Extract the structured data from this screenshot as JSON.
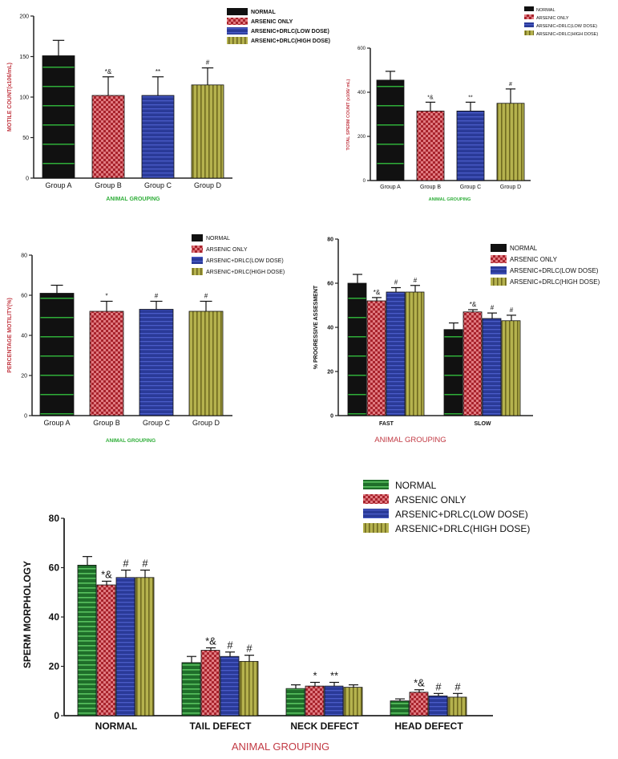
{
  "figure": {
    "colors": {
      "normal": "#111111",
      "normal_green": "#1f6e2a",
      "arsenic": "#a8232c",
      "low": "#2a3a98",
      "high": "#b5b24e",
      "green_label": "#2fae39",
      "red_label": "#c23a44"
    }
  },
  "chart_data": [
    {
      "id": "motile",
      "type": "bar",
      "categories": [
        "Group A",
        "Group B",
        "Group C",
        "Group D"
      ],
      "values": [
        151,
        102,
        102,
        115
      ],
      "errors": [
        19,
        23,
        23,
        21
      ],
      "annotations": [
        "",
        "*&",
        "**",
        "#"
      ],
      "xlabel": "ANIMAL GROUPING",
      "ylabel": "MOTILE COUNT(x106/mL)",
      "ylim": [
        0,
        200
      ],
      "yticks": [
        0,
        50,
        100,
        150,
        200
      ],
      "legend": [
        "NORMAL",
        "ARSENIC ONLY",
        "ARSENIC+DRLC(LOW DOSE)",
        "ARSENIC+DRLC(HIGH DOSE)"
      ]
    },
    {
      "id": "total",
      "type": "bar",
      "categories": [
        "Group A",
        "Group B",
        "Group C",
        "Group D"
      ],
      "values": [
        455,
        315,
        315,
        350
      ],
      "errors": [
        40,
        40,
        40,
        65
      ],
      "annotations": [
        "",
        "*&",
        "**",
        "#"
      ],
      "xlabel": "ANIMAL GROUPING",
      "ylabel": "TOTAL SPERM COUNT (x106/ mL)",
      "ylim": [
        0,
        600
      ],
      "yticks": [
        0,
        200,
        400,
        600
      ],
      "legend": [
        "NORMAL",
        "ARSENIC ONLY",
        "ARSENIC+DRLC(LOW DOSE)",
        "ARSENIC+DRLC(HIGH DOSE)"
      ]
    },
    {
      "id": "percentage",
      "type": "bar",
      "categories": [
        "Group A",
        "Group B",
        "Group C",
        "Group D"
      ],
      "values": [
        61,
        52,
        53,
        52
      ],
      "errors": [
        4,
        5,
        4,
        5
      ],
      "annotations": [
        "",
        "*",
        "#",
        "#"
      ],
      "xlabel": "ANIMAL GROUPING",
      "ylabel": "PERCENTAGE MOTILITY(%)",
      "ylim": [
        0,
        80
      ],
      "yticks": [
        0,
        20,
        40,
        60,
        80
      ],
      "legend": [
        "NORMAL",
        "ARSENIC ONLY",
        "ARSENIC+DRLC(LOW DOSE)",
        "ARSENIC+DRLC(HIGH DOSE)"
      ]
    },
    {
      "id": "progressive",
      "type": "bar",
      "categories": [
        "FAST",
        "SLOW"
      ],
      "series": [
        {
          "name": "NORMAL",
          "values": [
            60,
            39
          ],
          "errors": [
            4,
            3
          ],
          "annotations": [
            "",
            ""
          ]
        },
        {
          "name": "ARSENIC ONLY",
          "values": [
            52,
            47
          ],
          "errors": [
            1.5,
            1
          ],
          "annotations": [
            "*&",
            "*&"
          ]
        },
        {
          "name": "ARSENIC+DRLC(LOW DOSE)",
          "values": [
            56,
            44
          ],
          "errors": [
            2,
            2.5
          ],
          "annotations": [
            "#",
            "#"
          ]
        },
        {
          "name": "ARSENIC+DRLC(HIGH DOSE)",
          "values": [
            56,
            43
          ],
          "errors": [
            3,
            2.5
          ],
          "annotations": [
            "#",
            "#"
          ]
        }
      ],
      "xlabel": "ANIMAL GROUPING",
      "ylabel": "% PROGRESSIVE ASSESMENT",
      "ylim": [
        0,
        80
      ],
      "yticks": [
        0,
        20,
        40,
        60,
        80
      ]
    },
    {
      "id": "morphology",
      "type": "bar",
      "categories": [
        "NORMAL",
        "TAIL DEFECT",
        "NECK DEFECT",
        "HEAD DEFECT"
      ],
      "series": [
        {
          "name": "NORMAL",
          "values": [
            61,
            21.5,
            11,
            6
          ],
          "errors": [
            3.5,
            2.5,
            1.5,
            0.8
          ],
          "annotations": [
            "",
            "",
            "",
            ""
          ]
        },
        {
          "name": "ARSENIC ONLY",
          "values": [
            53,
            26.5,
            12,
            9.5
          ],
          "errors": [
            1.5,
            1,
            1.5,
            1
          ],
          "annotations": [
            "*&",
            "*&",
            "*",
            "*&"
          ]
        },
        {
          "name": "ARSENIC+DRLC(LOW DOSE)",
          "values": [
            56,
            24,
            12,
            8
          ],
          "errors": [
            3,
            1.8,
            1.5,
            1
          ],
          "annotations": [
            "#",
            "#",
            "**",
            "#"
          ]
        },
        {
          "name": "ARSENIC+DRLC(HIGH DOSE)",
          "values": [
            56,
            22,
            11.5,
            7.5
          ],
          "errors": [
            3,
            2.5,
            1,
            1.5
          ],
          "annotations": [
            "#",
            "#",
            "",
            "#"
          ]
        }
      ],
      "xlabel": "ANIMAL GROUPING",
      "ylabel": "SPERM MORPHOLOGY",
      "ylim": [
        0,
        80
      ],
      "yticks": [
        0,
        20,
        40,
        60,
        80
      ]
    }
  ]
}
